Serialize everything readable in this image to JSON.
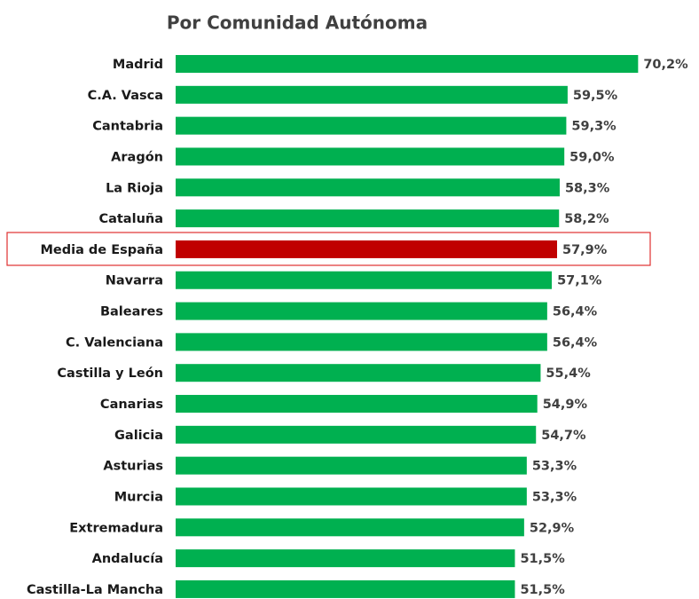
{
  "chart_data": {
    "type": "bar",
    "orientation": "horizontal",
    "title": "Por Comunidad Autónoma",
    "categories": [
      "Madrid",
      "C.A. Vasca",
      "Cantabria",
      "Aragón",
      "La Rioja",
      "Cataluña",
      "Media de España",
      "Navarra",
      "Baleares",
      "C. Valenciana",
      "Castilla y León",
      "Canarias",
      "Galicia",
      "Asturias",
      "Murcia",
      "Extremadura",
      "Andalucía",
      "Castilla-La Mancha"
    ],
    "values": [
      70.2,
      59.5,
      59.3,
      59.0,
      58.3,
      58.2,
      57.9,
      57.1,
      56.4,
      56.4,
      55.4,
      54.9,
      54.7,
      53.3,
      53.3,
      52.9,
      51.5,
      51.5
    ],
    "value_labels": [
      "70,2%",
      "59,5%",
      "59,3%",
      "59,0%",
      "58,3%",
      "58,2%",
      "57,9%",
      "57,1%",
      "56,4%",
      "56,4%",
      "55,4%",
      "54,9%",
      "54,7%",
      "53,3%",
      "53,3%",
      "52,9%",
      "51,5%",
      "51,5%"
    ],
    "colors": [
      "#00b050",
      "#00b050",
      "#00b050",
      "#00b050",
      "#00b050",
      "#00b050",
      "#c00000",
      "#00b050",
      "#00b050",
      "#00b050",
      "#00b050",
      "#00b050",
      "#00b050",
      "#00b050",
      "#00b050",
      "#00b050",
      "#00b050",
      "#00b050"
    ],
    "xlim": [
      0,
      75
    ]
  }
}
